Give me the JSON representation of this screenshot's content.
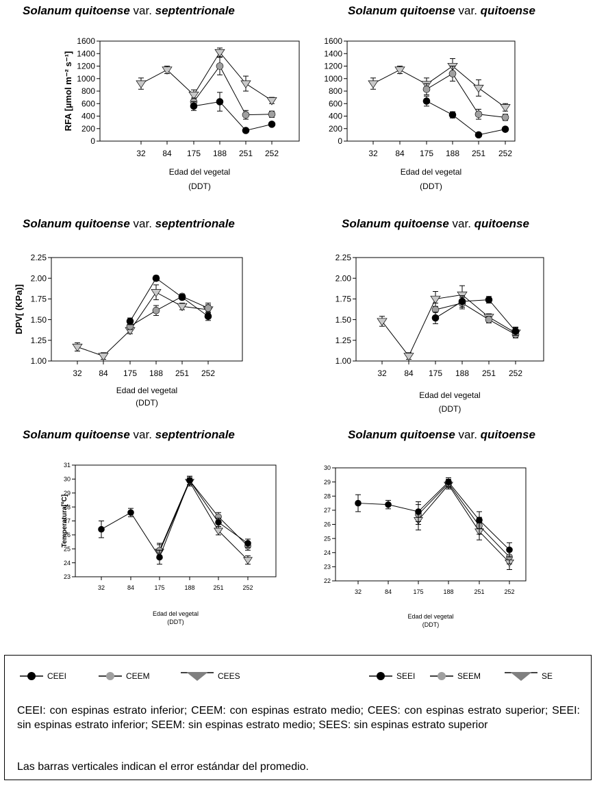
{
  "chart_data": [
    {
      "type": "line",
      "title_species": "Solanum quitoense",
      "title_mid": "var.",
      "title_variety": "septentrionale",
      "ylabel": "RFA [µmol m⁻² s⁻¹]",
      "xlabel": "Edad del vegetal",
      "xlabel2": "(DDT)",
      "categories": [
        "32",
        "84",
        "175",
        "188",
        "251",
        "252"
      ],
      "ylim": [
        0,
        1600
      ],
      "yticks": [
        "0",
        "200",
        "400",
        "600",
        "800",
        "1000",
        "1200",
        "1400",
        "1600"
      ],
      "series": [
        {
          "name": "CEEI",
          "marker": "circle",
          "color": "#000000",
          "values": [
            null,
            null,
            560,
            630,
            170,
            270
          ],
          "err": [
            0,
            0,
            70,
            150,
            20,
            20
          ]
        },
        {
          "name": "CEEM",
          "marker": "circle",
          "color": "#a0a0a0",
          "values": [
            null,
            null,
            630,
            1200,
            420,
            430
          ],
          "err": [
            0,
            0,
            60,
            140,
            70,
            50
          ]
        },
        {
          "name": "CEES",
          "marker": "triangle",
          "color": "#c8c8c8",
          "values": [
            920,
            1140,
            740,
            1420,
            920,
            650
          ],
          "err": [
            90,
            60,
            80,
            70,
            120,
            50
          ]
        }
      ]
    },
    {
      "type": "line",
      "title_species": "Solanum quitoense",
      "title_mid": "var.",
      "title_variety": "quitoense",
      "ylabel": "",
      "xlabel": "Edad del vegetal",
      "xlabel2": "(DDT)",
      "categories": [
        "32",
        "84",
        "175",
        "188",
        "251",
        "252"
      ],
      "ylim": [
        0,
        1600
      ],
      "yticks": [
        "0",
        "200",
        "400",
        "600",
        "800",
        "1000",
        "1200",
        "1400",
        "1600"
      ],
      "series": [
        {
          "name": "SEEI",
          "marker": "circle",
          "color": "#000000",
          "values": [
            null,
            null,
            640,
            420,
            100,
            190
          ],
          "err": [
            0,
            0,
            80,
            50,
            20,
            20
          ]
        },
        {
          "name": "SEEM",
          "marker": "circle",
          "color": "#a0a0a0",
          "values": [
            null,
            null,
            830,
            1080,
            430,
            380
          ],
          "err": [
            0,
            0,
            90,
            120,
            80,
            50
          ]
        },
        {
          "name": "SEES",
          "marker": "triangle",
          "color": "#c8c8c8",
          "values": [
            920,
            1140,
            910,
            1200,
            850,
            540
          ],
          "err": [
            90,
            60,
            100,
            120,
            130,
            60
          ]
        }
      ]
    },
    {
      "type": "line",
      "title_species": "Solanum quitoense",
      "title_mid": "var.",
      "title_variety": "septentrionale",
      "ylabel": "DPV[ (KPa)]",
      "xlabel": "Edad del vegetal",
      "xlabel2": "(DDT)",
      "categories": [
        "32",
        "84",
        "175",
        "188",
        "251",
        "252"
      ],
      "ylim": [
        1.0,
        2.25
      ],
      "yticks": [
        "1.00",
        "1.25",
        "1.50",
        "1.75",
        "2.00",
        "2.25"
      ],
      "series": [
        {
          "name": "CEEI",
          "marker": "circle",
          "color": "#000000",
          "values": [
            null,
            null,
            1.48,
            2.0,
            1.77,
            1.54
          ],
          "err": [
            0,
            0,
            0.04,
            0.03,
            0.03,
            0.05
          ]
        },
        {
          "name": "CEEM",
          "marker": "circle",
          "color": "#a0a0a0",
          "values": [
            null,
            null,
            1.42,
            1.61,
            1.78,
            1.64
          ],
          "err": [
            0,
            0,
            0.04,
            0.06,
            0.03,
            0.06
          ]
        },
        {
          "name": "CEES",
          "marker": "triangle",
          "color": "#c8c8c8",
          "values": [
            1.17,
            1.06,
            1.37,
            1.83,
            1.66,
            1.62
          ],
          "err": [
            0.05,
            0.04,
            0.04,
            0.09,
            0.04,
            0.06
          ]
        }
      ]
    },
    {
      "type": "line",
      "title_species": "Solanum quitoense",
      "title_mid": "var.",
      "title_variety": "quitoense",
      "ylabel": "",
      "xlabel": "Edad del vegetal",
      "xlabel2": "(DDT)",
      "categories": [
        "32",
        "84",
        "175",
        "188",
        "251",
        "252"
      ],
      "ylim": [
        1.0,
        2.25
      ],
      "yticks": [
        "1.00",
        "1.25",
        "1.50",
        "1.75",
        "2.00",
        "2.25"
      ],
      "series": [
        {
          "name": "SEEI",
          "marker": "circle",
          "color": "#000000",
          "values": [
            null,
            null,
            1.52,
            1.72,
            1.74,
            1.36
          ],
          "err": [
            0,
            0,
            0.07,
            0.07,
            0.04,
            0.05
          ]
        },
        {
          "name": "SEEM",
          "marker": "circle",
          "color": "#a0a0a0",
          "values": [
            null,
            null,
            1.62,
            1.7,
            1.5,
            1.32
          ],
          "err": [
            0,
            0,
            0.08,
            0.07,
            0.04,
            0.04
          ]
        },
        {
          "name": "SEES",
          "marker": "triangle",
          "color": "#c8c8c8",
          "values": [
            1.48,
            1.06,
            1.75,
            1.8,
            1.53,
            1.34
          ],
          "err": [
            0.06,
            0.04,
            0.09,
            0.11,
            0.04,
            0.06
          ]
        }
      ]
    },
    {
      "type": "line",
      "title_species": "Solanum quitoense",
      "title_mid": "var.",
      "title_variety": "septentrionale",
      "ylabel": "Temperatura[ºC]",
      "xlabel": "Edad del vegetal",
      "xlabel2": "(DDT)",
      "categories": [
        "32",
        "84",
        "175",
        "188",
        "251",
        "252"
      ],
      "ylim": [
        23,
        31
      ],
      "yticks": [
        "23",
        "24",
        "25",
        "26",
        "27",
        "28",
        "29",
        "30",
        "31"
      ],
      "series": [
        {
          "name": "CEEI",
          "marker": "circle",
          "color": "#000000",
          "values": [
            26.4,
            27.6,
            24.4,
            29.9,
            26.9,
            25.4
          ],
          "err": [
            0.6,
            0.3,
            0.5,
            0.3,
            0.3,
            0.3
          ]
        },
        {
          "name": "CEEM",
          "marker": "circle",
          "color": "#a0a0a0",
          "values": [
            null,
            null,
            24.9,
            29.9,
            27.3,
            25.2
          ],
          "err": [
            0,
            0,
            0.5,
            0.3,
            0.3,
            0.3
          ]
        },
        {
          "name": "CEES",
          "marker": "triangle",
          "color": "#c8c8c8",
          "values": [
            null,
            null,
            24.8,
            29.8,
            26.3,
            24.2
          ],
          "err": [
            0,
            0,
            0.5,
            0.3,
            0.3,
            0.3
          ]
        }
      ]
    },
    {
      "type": "line",
      "title_species": "Solanum quitoense",
      "title_mid": "var.",
      "title_variety": "quitoense",
      "ylabel": "",
      "xlabel": "Edad del vegetal",
      "xlabel2": "(DDT)",
      "categories": [
        "32",
        "84",
        "175",
        "188",
        "251",
        "252"
      ],
      "ylim": [
        22,
        30
      ],
      "yticks": [
        "22",
        "23",
        "24",
        "25",
        "26",
        "27",
        "28",
        "29",
        "30"
      ],
      "series": [
        {
          "name": "SEEI",
          "marker": "circle",
          "color": "#000000",
          "values": [
            27.5,
            27.4,
            26.9,
            29.0,
            26.3,
            24.2
          ],
          "err": [
            0.6,
            0.3,
            0.7,
            0.3,
            0.6,
            0.5
          ]
        },
        {
          "name": "SEEM",
          "marker": "circle",
          "color": "#a0a0a0",
          "values": [
            null,
            null,
            26.7,
            28.9,
            25.9,
            23.7
          ],
          "err": [
            0,
            0,
            0.7,
            0.3,
            0.6,
            0.5
          ]
        },
        {
          "name": "SEES",
          "marker": "triangle",
          "color": "#c8c8c8",
          "values": [
            null,
            null,
            26.3,
            28.8,
            25.5,
            23.3
          ],
          "err": [
            0,
            0,
            0.7,
            0.3,
            0.6,
            0.5
          ]
        }
      ]
    }
  ],
  "legend": {
    "items_left": [
      {
        "label": "CEEI",
        "marker": "circle",
        "color": "#000000"
      },
      {
        "label": "CEEM",
        "marker": "circle",
        "color": "#a0a0a0"
      },
      {
        "label": "CEES",
        "marker": "triangle",
        "color": "#808080"
      }
    ],
    "items_right": [
      {
        "label": "SEEI",
        "marker": "circle",
        "color": "#000000"
      },
      {
        "label": "SEEM",
        "marker": "circle",
        "color": "#a0a0a0"
      },
      {
        "label": "SE",
        "marker": "triangle",
        "color": "#808080"
      }
    ],
    "description": "CEEI: con espinas estrato inferior; CEEM: con espinas estrato medio; CEES: con espinas estrato superior; SEEI: sin espinas estrato inferior; SEEM: sin espinas estrato medio; SEES: sin espinas estrato superior",
    "note": "Las barras verticales indican el error estándar del promedio."
  }
}
